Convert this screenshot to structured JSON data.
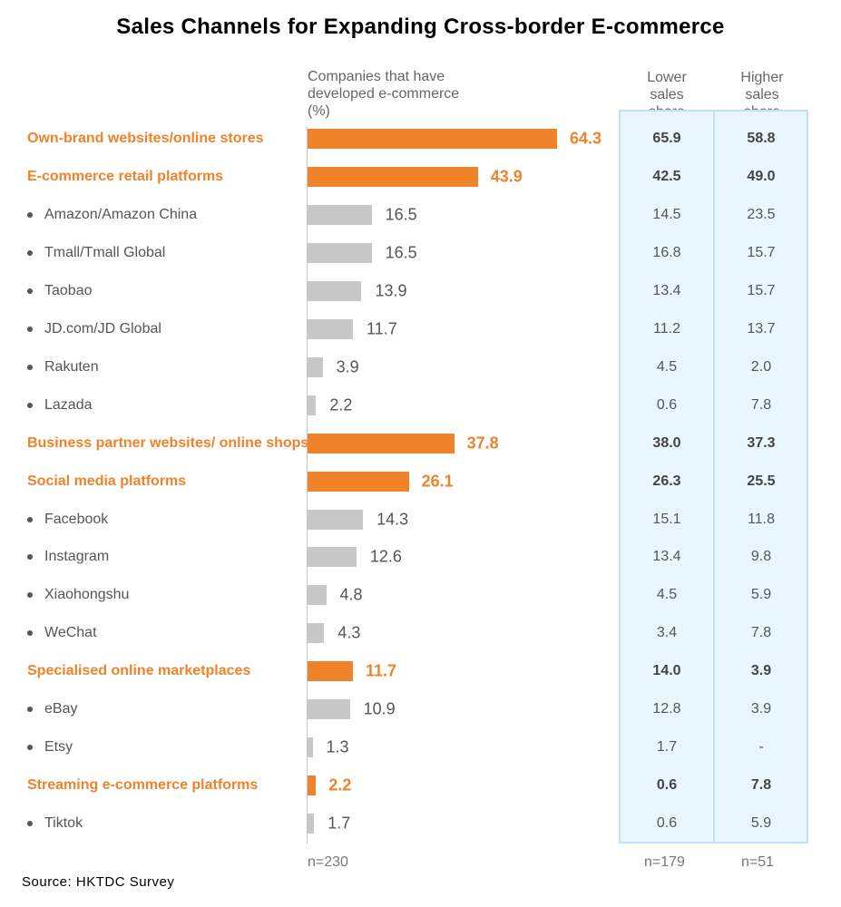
{
  "chart_data": {
    "type": "bar",
    "orientation": "horizontal",
    "title": "Sales Channels for Expanding Cross-border E-commerce",
    "bar_header": "Companies that have developed e-commerce (%)",
    "table_headers": [
      "Lower sales share",
      "Higher sales share"
    ],
    "colors": {
      "category": "#f0832a",
      "subitem": "#c8c8c8",
      "table_bg": "#eaf6fd",
      "table_border": "#bfe3f5"
    },
    "rows": [
      {
        "label": "Own-brand websites/online stores",
        "kind": "category",
        "value": 64.3,
        "lower": "65.9",
        "higher": "58.8"
      },
      {
        "label": "E-commerce retail platforms",
        "kind": "category",
        "value": 43.9,
        "lower": "42.5",
        "higher": "49.0"
      },
      {
        "label": "Amazon/Amazon China",
        "kind": "sub",
        "value": 16.5,
        "lower": "14.5",
        "higher": "23.5"
      },
      {
        "label": "Tmall/Tmall Global",
        "kind": "sub",
        "value": 16.5,
        "lower": "16.8",
        "higher": "15.7"
      },
      {
        "label": "Taobao",
        "kind": "sub",
        "value": 13.9,
        "lower": "13.4",
        "higher": "15.7"
      },
      {
        "label": "JD.com/JD Global",
        "kind": "sub",
        "value": 11.7,
        "lower": "11.2",
        "higher": "13.7"
      },
      {
        "label": "Rakuten",
        "kind": "sub",
        "value": 3.9,
        "lower": "4.5",
        "higher": "2.0"
      },
      {
        "label": "Lazada",
        "kind": "sub",
        "value": 2.2,
        "lower": "0.6",
        "higher": "7.8"
      },
      {
        "label": "Business partner websites/ online shops",
        "kind": "category",
        "value": 37.8,
        "lower": "38.0",
        "higher": "37.3"
      },
      {
        "label": "Social media platforms",
        "kind": "category",
        "value": 26.1,
        "lower": "26.3",
        "higher": "25.5"
      },
      {
        "label": "Facebook",
        "kind": "sub",
        "value": 14.3,
        "lower": "15.1",
        "higher": "11.8"
      },
      {
        "label": "Instagram",
        "kind": "sub",
        "value": 12.6,
        "lower": "13.4",
        "higher": "9.8"
      },
      {
        "label": "Xiaohongshu",
        "kind": "sub",
        "value": 4.8,
        "lower": "4.5",
        "higher": "5.9"
      },
      {
        "label": "WeChat",
        "kind": "sub",
        "value": 4.3,
        "lower": "3.4",
        "higher": "7.8"
      },
      {
        "label": "Specialised online marketplaces",
        "kind": "category",
        "value": 11.7,
        "lower": "14.0",
        "higher": "3.9"
      },
      {
        "label": "eBay",
        "kind": "sub",
        "value": 10.9,
        "lower": "12.8",
        "higher": "3.9"
      },
      {
        "label": "Etsy",
        "kind": "sub",
        "value": 1.3,
        "lower": "1.7",
        "higher": "-"
      },
      {
        "label": "Streaming e-commerce platforms",
        "kind": "category",
        "value": 2.2,
        "lower": "0.6",
        "higher": "7.8"
      },
      {
        "label": "Tiktok",
        "kind": "sub",
        "value": 1.7,
        "lower": "0.6",
        "higher": "5.9"
      }
    ],
    "n_labels": {
      "bars": "n=230",
      "lower": "n=179",
      "higher": "n=51"
    },
    "source": "Source: HKTDC Survey"
  }
}
